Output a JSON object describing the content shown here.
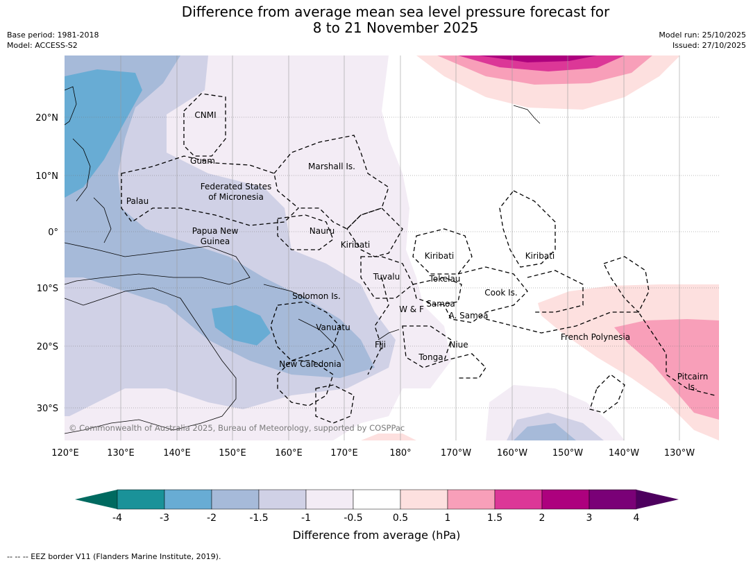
{
  "title_line1": "Difference from average mean sea level pressure forecast for",
  "title_line2": "8 to 21 November 2025",
  "base_period": "Base period: 1981-2018",
  "model": "Model: ACCESS-S2",
  "model_run": "Model run: 25/10/2025",
  "issued": "Issued: 27/10/2025",
  "lon_labels": [
    "120°E",
    "130°E",
    "140°E",
    "150°E",
    "160°E",
    "170°E",
    "180°",
    "170°W",
    "160°W",
    "150°W",
    "140°W",
    "130°W"
  ],
  "lat_labels": [
    "20°N",
    "10°N",
    "0°",
    "10°S",
    "20°S",
    "30°S"
  ],
  "regions": [
    "CNMI",
    "Guam",
    "Marshall Is.",
    "Federated States",
    "of Micronesia",
    "Palau",
    "Papua New",
    "Guinea",
    "Nauru",
    "Kiribati",
    "Kiribati",
    "Kiribati",
    "Tuvalu",
    "Tokelau",
    "Solomon Is.",
    "W & F",
    "Samoa",
    "A. Samoa",
    "Cook Is.",
    "Vanuatu",
    "Fiji",
    "Niue",
    "Tonga",
    "French Polynesia",
    "New Caledonia",
    "Pitcairn",
    "Is."
  ],
  "copyright": "© Commonwealth of Australia 2025, Bureau of Meteorology, supported by COSPPac",
  "colorbar": {
    "ticks": [
      "-4",
      "-3",
      "-2",
      "-1.5",
      "-1",
      "-0.5",
      "0.5",
      "1",
      "1.5",
      "2",
      "3",
      "4"
    ],
    "colors": [
      "#1a9299",
      "#68acd4",
      "#a6bad9",
      "#d0d1e6",
      "#f3ecf5",
      "#ffffff",
      "#fde0df",
      "#f89fb9",
      "#dc3797",
      "#ad017e",
      "#7a0177"
    ],
    "under_color": "#006a60",
    "over_color": "#4d005e",
    "label": "Difference from average (hPa)"
  },
  "footnote": "--  --  -- EEZ border V11 (Flanders Marine Institute, 2019)."
}
